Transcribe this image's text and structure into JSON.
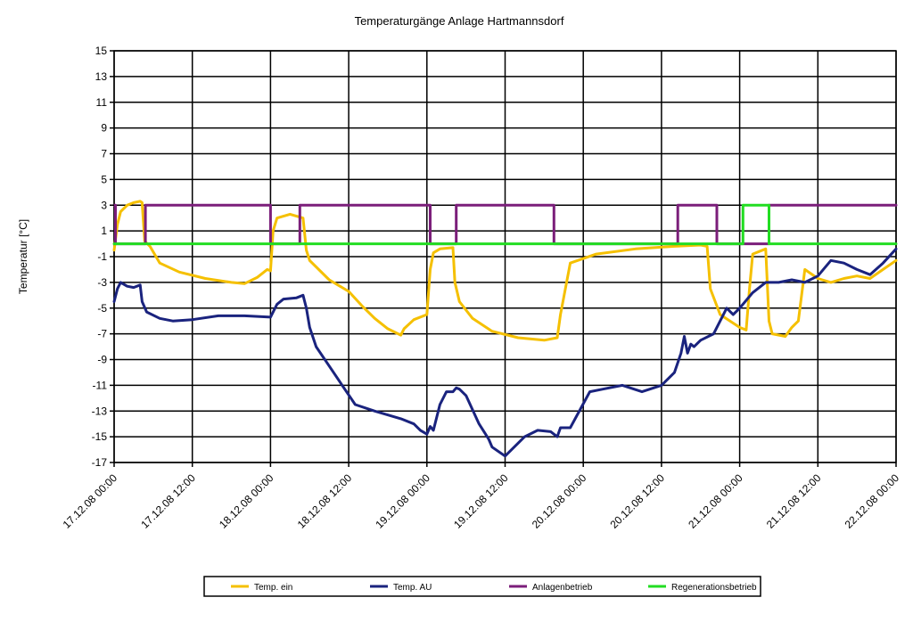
{
  "chart_data": {
    "type": "line",
    "title": "Temperaturgänge Anlage Hartmannsdorf",
    "xlabel": "",
    "ylabel": "Temperatur [°C]",
    "ylim": [
      -17,
      15
    ],
    "y_ticks": [
      15,
      13,
      11,
      9,
      7,
      5,
      3,
      1,
      -1,
      -3,
      -5,
      -7,
      -9,
      -11,
      -13,
      -15,
      -17
    ],
    "x_range_hours": [
      0,
      120
    ],
    "x_ticks": [
      "17.12.08 00:00",
      "17.12.08 12:00",
      "18.12.08 00:00",
      "18.12.08 12:00",
      "19.12.08 00:00",
      "19.12.08 12:00",
      "20.12.08 00:00",
      "20.12.08 12:00",
      "21.12.08 00:00",
      "21.12.08 12:00",
      "22.12.08 00:00"
    ],
    "grid": true,
    "legend_position": "bottom",
    "series": [
      {
        "name": "Temp. ein",
        "color": "#f5c000",
        "x": [
          0,
          0.5,
          1,
          2,
          3,
          4,
          4.3,
          4.7,
          5.5,
          7,
          10,
          14,
          18,
          20,
          22,
          23.5,
          24,
          24.4,
          25,
          27,
          29,
          29.5,
          30,
          33,
          36,
          38,
          40,
          42,
          44,
          44.5,
          46,
          48,
          48.5,
          49,
          50,
          52,
          52.3,
          53,
          55,
          58,
          62,
          66,
          68,
          68.5,
          70,
          74,
          80,
          86,
          90,
          91,
          91.5,
          93,
          96,
          97,
          97.5,
          98,
          100,
          100.5,
          101,
          103,
          104,
          105,
          106,
          108,
          110,
          112,
          114,
          116,
          118,
          120
        ],
        "y": [
          -0.5,
          1.5,
          2.5,
          3.0,
          3.2,
          3.3,
          3.2,
          0.2,
          -0.2,
          -1.5,
          -2.2,
          -2.7,
          -3.0,
          -3.1,
          -2.6,
          -2.0,
          -2.1,
          1.0,
          2.0,
          2.3,
          2.0,
          -0.5,
          -1.3,
          -2.8,
          -3.7,
          -4.8,
          -5.8,
          -6.6,
          -7.1,
          -6.6,
          -5.9,
          -5.5,
          -2.0,
          -0.7,
          -0.4,
          -0.3,
          -3.0,
          -4.5,
          -5.8,
          -6.8,
          -7.3,
          -7.5,
          -7.3,
          -5.5,
          -1.5,
          -0.8,
          -0.4,
          -0.2,
          -0.1,
          -0.2,
          -3.5,
          -5.5,
          -6.5,
          -6.7,
          -3.5,
          -0.8,
          -0.4,
          -6.0,
          -7.0,
          -7.2,
          -6.5,
          -6.0,
          -2.0,
          -2.7,
          -3.0,
          -2.7,
          -2.5,
          -2.7,
          -2.0,
          -1.3
        ]
      },
      {
        "name": "Temp. AU",
        "color": "#1a237e",
        "x": [
          0,
          0.5,
          1,
          2,
          3,
          4,
          4.3,
          5,
          7,
          9,
          12,
          16,
          20,
          24,
          25,
          26,
          28,
          29,
          29.5,
          30,
          31,
          33,
          35,
          37,
          40,
          44,
          46,
          47,
          48,
          48.5,
          49,
          50,
          51,
          52,
          52.5,
          53,
          54,
          56,
          57,
          57.5,
          58,
          60,
          63,
          65,
          67,
          68,
          68.5,
          70,
          73,
          75,
          78,
          81,
          84,
          86,
          87,
          87.5,
          88,
          88.5,
          89,
          90,
          92,
          94,
          95,
          96,
          98,
          100,
          102,
          104,
          106,
          108,
          110,
          112,
          114,
          116,
          118,
          120
        ],
        "y": [
          -4.5,
          -3.5,
          -3.0,
          -3.3,
          -3.4,
          -3.2,
          -4.5,
          -5.3,
          -5.8,
          -6.0,
          -5.9,
          -5.6,
          -5.6,
          -5.7,
          -4.7,
          -4.3,
          -4.2,
          -4.0,
          -5.0,
          -6.5,
          -8.0,
          -9.5,
          -11.0,
          -12.5,
          -13.0,
          -13.6,
          -14.0,
          -14.5,
          -14.8,
          -14.2,
          -14.5,
          -12.5,
          -11.5,
          -11.5,
          -11.2,
          -11.3,
          -11.8,
          -14.0,
          -14.8,
          -15.2,
          -15.8,
          -16.5,
          -15.0,
          -14.5,
          -14.6,
          -15.0,
          -14.3,
          -14.3,
          -11.5,
          -11.3,
          -11.0,
          -11.5,
          -11.0,
          -10.0,
          -8.5,
          -7.2,
          -8.5,
          -7.8,
          -8.0,
          -7.5,
          -7.0,
          -5.0,
          -5.5,
          -5.0,
          -3.8,
          -3.0,
          -3.0,
          -2.8,
          -3.0,
          -2.5,
          -1.3,
          -1.5,
          -2.0,
          -2.4,
          -1.5,
          -0.4
        ]
      },
      {
        "name": "Anlagenbetrieb",
        "color": "#7b1e7a",
        "x": [
          0,
          0.2,
          0.2,
          4.8,
          4.8,
          24,
          24,
          28.5,
          28.5,
          48.5,
          48.5,
          52.5,
          52.5,
          67.5,
          67.5,
          86.5,
          86.5,
          92.5,
          92.5,
          96.5,
          96.5,
          100.5,
          100.5,
          120
        ],
        "y": [
          3,
          3,
          0,
          0,
          3,
          3,
          0,
          0,
          3,
          3,
          0,
          0,
          3,
          3,
          0,
          0,
          3,
          3,
          0,
          0,
          0,
          0,
          3,
          3
        ]
      },
      {
        "name": "Regenerationsbetrieb",
        "color": "#22dd22",
        "x": [
          0,
          96.5,
          96.5,
          100.5,
          100.5,
          120
        ],
        "y": [
          0,
          0,
          3,
          3,
          0,
          0
        ]
      }
    ]
  }
}
